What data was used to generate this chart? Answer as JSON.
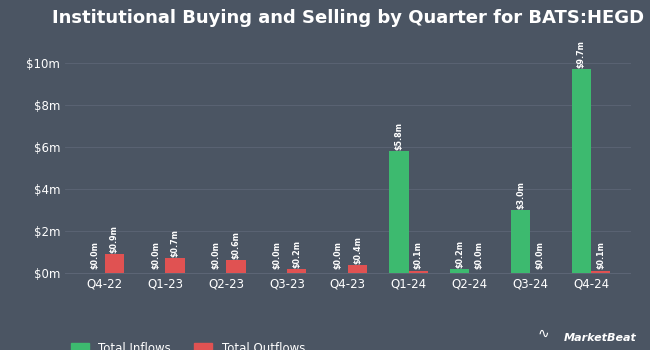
{
  "title": "Institutional Buying and Selling by Quarter for BATS:HEGD",
  "quarters": [
    "Q4-22",
    "Q1-23",
    "Q2-23",
    "Q3-23",
    "Q4-23",
    "Q1-24",
    "Q2-24",
    "Q3-24",
    "Q4-24"
  ],
  "inflows": [
    0.0,
    0.0,
    0.0,
    0.0,
    0.0,
    5.8,
    0.2,
    3.0,
    9.7
  ],
  "outflows": [
    0.9,
    0.7,
    0.6,
    0.2,
    0.4,
    0.1,
    0.0,
    0.0,
    0.1
  ],
  "inflow_labels": [
    "$0.0m",
    "$0.0m",
    "$0.0m",
    "$0.0m",
    "$0.0m",
    "$5.8m",
    "$0.2m",
    "$3.0m",
    "$9.7m"
  ],
  "outflow_labels": [
    "$0.9m",
    "$0.7m",
    "$0.6m",
    "$0.2m",
    "$0.4m",
    "$0.1m",
    "$0.0m",
    "$0.0m",
    "$0.1m"
  ],
  "inflow_color": "#3dba6f",
  "outflow_color": "#e05252",
  "background_color": "#4b5563",
  "text_color": "#ffffff",
  "grid_color": "#5c6575",
  "ylim": [
    0,
    11
  ],
  "yticks": [
    0,
    2,
    4,
    6,
    8,
    10
  ],
  "ytick_labels": [
    "$0m",
    "$2m",
    "$4m",
    "$6m",
    "$8m",
    "$10m"
  ],
  "bar_width": 0.32,
  "bar_gap": 0.0,
  "legend_inflow": "Total Inflows",
  "legend_outflow": "Total Outflows",
  "title_fontsize": 13,
  "label_fontsize": 5.8,
  "tick_fontsize": 8.5
}
